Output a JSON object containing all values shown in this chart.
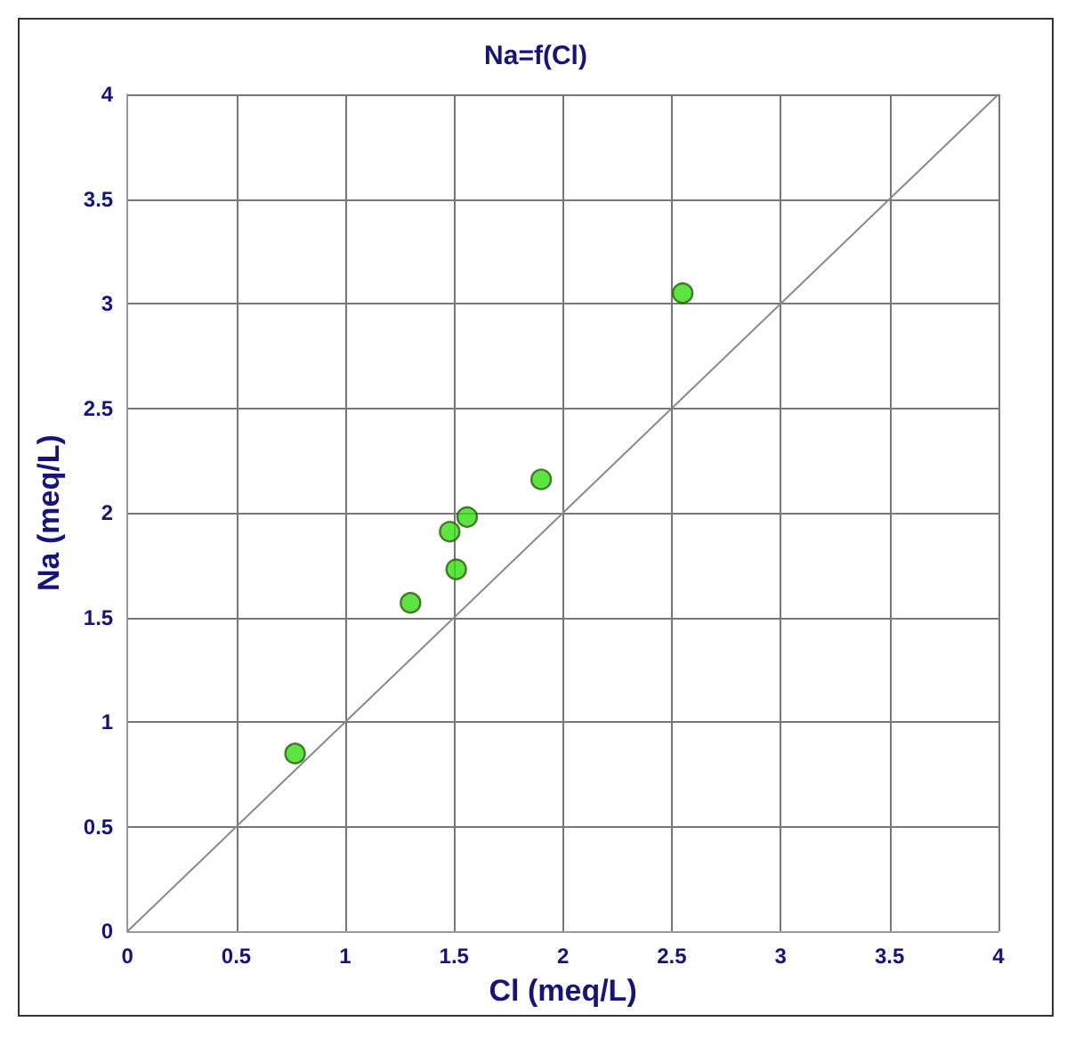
{
  "chart_data": {
    "type": "scatter",
    "title": "Na=f(Cl)",
    "xlabel": "Cl (meq/L)",
    "ylabel": "Na (meq/L)",
    "x": [
      0.77,
      1.3,
      1.48,
      1.51,
      1.56,
      1.9,
      2.55
    ],
    "series": [
      {
        "color": "#33dd11",
        "marker": "circle",
        "values": [
          0.85,
          1.57,
          1.91,
          1.73,
          1.98,
          2.16,
          3.05
        ]
      },
      {
        "type": "line",
        "marker": "none",
        "color": "#888888",
        "x": [
          0,
          4
        ],
        "values": [
          0,
          4
        ]
      }
    ],
    "xlim": [
      0,
      4
    ],
    "ylim": [
      0,
      4
    ],
    "xticks": [
      0,
      0.5,
      1,
      1.5,
      2,
      2.5,
      3,
      3.5,
      4
    ],
    "yticks": [
      0,
      0.5,
      1,
      1.5,
      2,
      2.5,
      3,
      3.5,
      4
    ],
    "grid": true
  }
}
